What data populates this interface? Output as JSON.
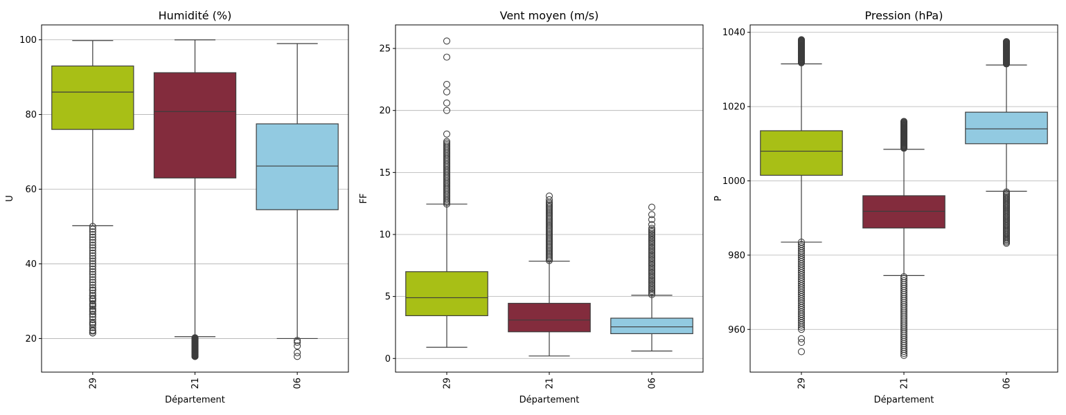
{
  "chart_data": [
    {
      "type": "box",
      "title": "Humidité (%)",
      "xlabel": "Département",
      "ylabel": "U",
      "categories": [
        "29",
        "21",
        "06"
      ],
      "colors": [
        "#a8bf16",
        "#832c3d",
        "#92cae1"
      ],
      "ylim": [
        11,
        104
      ],
      "yticks": [
        20,
        40,
        60,
        80,
        100
      ],
      "grid": "y",
      "boxes": [
        {
          "category": "29",
          "whislo": 50.2,
          "q1": 76,
          "med": 86,
          "q3": 93,
          "whishi": 99.8,
          "fliers_range": [
            21.5,
            50
          ],
          "fliers_extra": [
            21.5,
            22,
            24,
            26.5,
            27.5,
            29,
            30.5,
            31.5,
            33
          ]
        },
        {
          "category": "21",
          "whislo": 20.5,
          "q1": 63,
          "med": 80.8,
          "q3": 91.2,
          "whishi": 100,
          "fliers_range": [
            15.2,
            20.2
          ],
          "fliers_extra": [
            15.2,
            16,
            17,
            18
          ]
        },
        {
          "category": "06",
          "whislo": 20,
          "q1": 54.5,
          "med": 66.2,
          "q3": 77.5,
          "whishi": 99,
          "fliers_range": null,
          "fliers_extra": [
            15.2,
            16.2,
            18,
            19,
            19.5
          ]
        }
      ]
    },
    {
      "type": "box",
      "title": "Vent moyen (m/s)",
      "xlabel": "Département",
      "ylabel": "FF",
      "categories": [
        "29",
        "21",
        "06"
      ],
      "colors": [
        "#a8bf16",
        "#832c3d",
        "#92cae1"
      ],
      "ylim": [
        -1.1,
        26.9
      ],
      "yticks": [
        0,
        5,
        10,
        15,
        20,
        25
      ],
      "grid": "y",
      "boxes": [
        {
          "category": "29",
          "whislo": 0.9,
          "q1": 3.45,
          "med": 4.9,
          "q3": 7.0,
          "whishi": 12.45,
          "fliers_range": [
            12.45,
            17.5
          ],
          "fliers_extra": [
            18.1,
            20.0,
            20.6,
            21.5,
            22.1,
            24.3,
            25.6
          ]
        },
        {
          "category": "21",
          "whislo": 0.2,
          "q1": 2.15,
          "med": 3.1,
          "q3": 4.45,
          "whishi": 7.85,
          "fliers_range": [
            7.9,
            12.6
          ],
          "fliers_extra": [
            12.8,
            13.1
          ]
        },
        {
          "category": "06",
          "whislo": 0.6,
          "q1": 2.0,
          "med": 2.55,
          "q3": 3.25,
          "whishi": 5.1,
          "fliers_range": [
            5.15,
            10.5
          ],
          "fliers_extra": [
            10.8,
            11.2,
            11.6,
            12.2
          ]
        }
      ]
    },
    {
      "type": "box",
      "title": "Pression (hPa)",
      "xlabel": "Département",
      "ylabel": "P",
      "categories": [
        "29",
        "21",
        "06"
      ],
      "colors": [
        "#a8bf16",
        "#832c3d",
        "#92cae1"
      ],
      "ylim": [
        948.5,
        1042
      ],
      "yticks": [
        960,
        980,
        1000,
        1020,
        1040
      ],
      "grid": "y",
      "boxes": [
        {
          "category": "29",
          "whislo": 983.5,
          "q1": 1001.5,
          "med": 1008,
          "q3": 1013.5,
          "whishi": 1031.5,
          "fliers_range_low": [
            960,
            983.5
          ],
          "fliers_range_high": [
            1031.8,
            1038
          ],
          "fliers_extra": [
            954,
            956.5,
            957.5
          ]
        },
        {
          "category": "21",
          "whislo": 974.5,
          "q1": 987.3,
          "med": 991.8,
          "q3": 996,
          "whishi": 1008.5,
          "fliers_range_low": [
            953,
            974.2
          ],
          "fliers_range_high": [
            1008.8,
            1016
          ],
          "fliers_extra": []
        },
        {
          "category": "06",
          "whislo": 997.2,
          "q1": 1010,
          "med": 1014,
          "q3": 1018.5,
          "whishi": 1031.2,
          "fliers_range_low": [
            983.2,
            997
          ],
          "fliers_range_high": [
            1031.5,
            1037.5
          ],
          "fliers_extra": []
        }
      ]
    }
  ]
}
